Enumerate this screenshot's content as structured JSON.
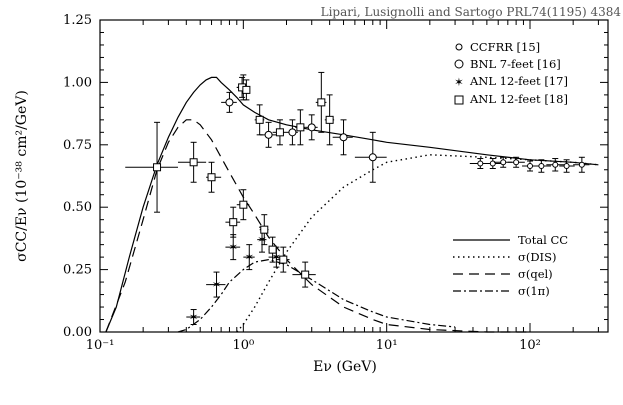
{
  "chart_data": {
    "type": "line",
    "citation": "Lipari, Lusignolli and Sartogo PRL74(1195) 4384",
    "xlabel": "Eν (GeV)",
    "ylabel": "σCC/Eν   (10⁻³⁸  cm²/GeV)",
    "xscale": "log",
    "xlim": [
      0.1,
      350
    ],
    "ylim": [
      0,
      1.25
    ],
    "x_ticks": [
      {
        "value": 0.1,
        "label": "10⁻¹"
      },
      {
        "value": 1,
        "label": "10⁰"
      },
      {
        "value": 10,
        "label": "10¹"
      },
      {
        "value": 100,
        "label": "10²"
      }
    ],
    "y_ticks": [
      {
        "value": 0,
        "label": "0.00"
      },
      {
        "value": 0.25,
        "label": "0.25"
      },
      {
        "value": 0.5,
        "label": "0.50"
      },
      {
        "value": 0.75,
        "label": "0.75"
      },
      {
        "value": 1.0,
        "label": "1.00"
      },
      {
        "value": 1.25,
        "label": "1.25"
      }
    ],
    "series": [
      {
        "name": "Total CC",
        "style": "solid",
        "x": [
          0.11,
          0.13,
          0.16,
          0.2,
          0.25,
          0.3,
          0.35,
          0.4,
          0.45,
          0.5,
          0.55,
          0.6,
          0.65,
          0.7,
          0.8,
          0.9,
          1.0,
          1.2,
          1.5,
          2,
          3,
          5,
          8,
          10,
          20,
          50,
          100,
          200,
          300
        ],
        "y": [
          0.0,
          0.1,
          0.3,
          0.5,
          0.67,
          0.78,
          0.86,
          0.92,
          0.96,
          0.99,
          1.01,
          1.02,
          1.02,
          1.0,
          0.97,
          0.94,
          0.91,
          0.88,
          0.85,
          0.83,
          0.81,
          0.79,
          0.77,
          0.76,
          0.74,
          0.71,
          0.69,
          0.68,
          0.67
        ]
      },
      {
        "name": "σ(DIS)",
        "style": "dotted",
        "x": [
          0.9,
          1.0,
          1.2,
          1.5,
          2,
          3,
          5,
          8,
          10,
          20,
          50,
          100,
          200,
          300
        ],
        "y": [
          0.0,
          0.03,
          0.1,
          0.2,
          0.32,
          0.46,
          0.58,
          0.65,
          0.68,
          0.71,
          0.7,
          0.69,
          0.68,
          0.67
        ]
      },
      {
        "name": "σ(qel)",
        "style": "dashed",
        "x": [
          0.11,
          0.15,
          0.2,
          0.25,
          0.3,
          0.35,
          0.4,
          0.45,
          0.5,
          0.6,
          0.7,
          0.8,
          1.0,
          1.2,
          1.5,
          2,
          3,
          5,
          8,
          10,
          20,
          50,
          100
        ],
        "y": [
          0.0,
          0.2,
          0.45,
          0.65,
          0.76,
          0.82,
          0.85,
          0.85,
          0.83,
          0.77,
          0.7,
          0.64,
          0.54,
          0.47,
          0.38,
          0.29,
          0.19,
          0.1,
          0.05,
          0.03,
          0.01,
          0.0,
          0.0
        ]
      },
      {
        "name": "σ(1π)",
        "style": "dashdot",
        "x": [
          0.35,
          0.4,
          0.5,
          0.6,
          0.7,
          0.8,
          1.0,
          1.2,
          1.5,
          2,
          3,
          5,
          8,
          10,
          20,
          30
        ],
        "y": [
          0.0,
          0.01,
          0.05,
          0.1,
          0.15,
          0.2,
          0.25,
          0.28,
          0.29,
          0.27,
          0.21,
          0.13,
          0.08,
          0.06,
          0.03,
          0.02
        ]
      }
    ],
    "data_sets": [
      {
        "name": "CCFRR [15]",
        "marker": "circle-small",
        "points": [
          {
            "x": 45,
            "y": 0.675,
            "xlo": 38,
            "xhi": 53,
            "ylo": 0.655,
            "yhi": 0.695
          },
          {
            "x": 55,
            "y": 0.675,
            "xlo": 47,
            "xhi": 63,
            "ylo": 0.655,
            "yhi": 0.695
          },
          {
            "x": 65,
            "y": 0.68,
            "xlo": 56,
            "xhi": 75,
            "ylo": 0.66,
            "yhi": 0.7
          },
          {
            "x": 80,
            "y": 0.68,
            "xlo": 70,
            "xhi": 92,
            "ylo": 0.66,
            "yhi": 0.7
          },
          {
            "x": 100,
            "y": 0.665,
            "xlo": 88,
            "xhi": 115,
            "ylo": 0.645,
            "yhi": 0.685
          },
          {
            "x": 120,
            "y": 0.665,
            "xlo": 105,
            "xhi": 140,
            "ylo": 0.64,
            "yhi": 0.69
          },
          {
            "x": 150,
            "y": 0.67,
            "xlo": 130,
            "xhi": 175,
            "ylo": 0.645,
            "yhi": 0.695
          },
          {
            "x": 180,
            "y": 0.665,
            "xlo": 160,
            "xhi": 205,
            "ylo": 0.64,
            "yhi": 0.69
          },
          {
            "x": 230,
            "y": 0.67,
            "xlo": 200,
            "xhi": 260,
            "ylo": 0.64,
            "yhi": 0.7
          }
        ]
      },
      {
        "name": "BNL 7-feet [16]",
        "marker": "circle",
        "points": [
          {
            "x": 0.8,
            "y": 0.92,
            "xlo": 0.7,
            "xhi": 0.9,
            "ylo": 0.88,
            "yhi": 0.96
          },
          {
            "x": 1.0,
            "y": 0.98,
            "xlo": 0.9,
            "xhi": 1.1,
            "ylo": 0.93,
            "yhi": 1.03
          },
          {
            "x": 1.5,
            "y": 0.79,
            "xlo": 1.3,
            "xhi": 1.7,
            "ylo": 0.74,
            "yhi": 0.84
          },
          {
            "x": 2.2,
            "y": 0.8,
            "xlo": 2.0,
            "xhi": 2.4,
            "ylo": 0.75,
            "yhi": 0.85
          },
          {
            "x": 3.0,
            "y": 0.82,
            "xlo": 2.7,
            "xhi": 3.3,
            "ylo": 0.77,
            "yhi": 0.87
          },
          {
            "x": 5.0,
            "y": 0.78,
            "xlo": 4.2,
            "xhi": 5.8,
            "ylo": 0.71,
            "yhi": 0.85
          },
          {
            "x": 8.0,
            "y": 0.7,
            "xlo": 6.0,
            "xhi": 10.0,
            "ylo": 0.6,
            "yhi": 0.8
          }
        ]
      },
      {
        "name": "ANL 12-feet [17]",
        "marker": "star",
        "points": [
          {
            "x": 0.45,
            "y": 0.06,
            "xlo": 0.4,
            "xhi": 0.5,
            "ylo": 0.03,
            "yhi": 0.09
          },
          {
            "x": 0.65,
            "y": 0.19,
            "xlo": 0.55,
            "xhi": 0.75,
            "ylo": 0.14,
            "yhi": 0.24
          },
          {
            "x": 0.85,
            "y": 0.34,
            "xlo": 0.75,
            "xhi": 0.95,
            "ylo": 0.29,
            "yhi": 0.39
          },
          {
            "x": 1.1,
            "y": 0.3,
            "xlo": 1.0,
            "xhi": 1.2,
            "ylo": 0.25,
            "yhi": 0.35
          },
          {
            "x": 1.35,
            "y": 0.37,
            "xlo": 1.25,
            "xhi": 1.45,
            "ylo": 0.32,
            "yhi": 0.42
          },
          {
            "x": 1.7,
            "y": 0.3,
            "xlo": 1.5,
            "xhi": 1.9,
            "ylo": 0.26,
            "yhi": 0.34
          }
        ]
      },
      {
        "name": "ANL 12-feet [18]",
        "marker": "square",
        "points": [
          {
            "x": 0.25,
            "y": 0.66,
            "xlo": 0.15,
            "xhi": 0.35,
            "ylo": 0.48,
            "yhi": 0.84
          },
          {
            "x": 0.45,
            "y": 0.68,
            "xlo": 0.35,
            "xhi": 0.55,
            "ylo": 0.6,
            "yhi": 0.76
          },
          {
            "x": 0.6,
            "y": 0.62,
            "xlo": 0.55,
            "xhi": 0.7,
            "ylo": 0.56,
            "yhi": 0.68
          },
          {
            "x": 0.85,
            "y": 0.44,
            "xlo": 0.75,
            "xhi": 0.95,
            "ylo": 0.38,
            "yhi": 0.5
          },
          {
            "x": 1.0,
            "y": 0.51,
            "xlo": 0.9,
            "xhi": 1.1,
            "ylo": 0.45,
            "yhi": 0.57
          },
          {
            "x": 1.4,
            "y": 0.41,
            "xlo": 1.3,
            "xhi": 1.5,
            "ylo": 0.35,
            "yhi": 0.47
          },
          {
            "x": 1.6,
            "y": 0.33,
            "xlo": 1.5,
            "xhi": 1.7,
            "ylo": 0.28,
            "yhi": 0.38
          },
          {
            "x": 1.9,
            "y": 0.29,
            "xlo": 1.7,
            "xhi": 2.1,
            "ylo": 0.24,
            "yhi": 0.34
          },
          {
            "x": 2.7,
            "y": 0.23,
            "xlo": 2.2,
            "xhi": 3.2,
            "ylo": 0.18,
            "yhi": 0.28
          },
          {
            "x": 0.98,
            "y": 0.98,
            "xlo": 0.9,
            "xhi": 1.05,
            "ylo": 0.94,
            "yhi": 1.02
          },
          {
            "x": 1.05,
            "y": 0.97,
            "xlo": 1.0,
            "xhi": 1.1,
            "ylo": 0.93,
            "yhi": 1.01
          },
          {
            "x": 1.3,
            "y": 0.85,
            "xlo": 1.2,
            "xhi": 1.4,
            "ylo": 0.79,
            "yhi": 0.91
          },
          {
            "x": 1.8,
            "y": 0.8,
            "xlo": 1.6,
            "xhi": 2.0,
            "ylo": 0.75,
            "yhi": 0.85
          },
          {
            "x": 2.5,
            "y": 0.82,
            "xlo": 2.3,
            "xhi": 2.7,
            "ylo": 0.75,
            "yhi": 0.89
          },
          {
            "x": 3.5,
            "y": 0.92,
            "xlo": 3.2,
            "xhi": 3.8,
            "ylo": 0.8,
            "yhi": 1.04
          },
          {
            "x": 4.0,
            "y": 0.85,
            "xlo": 3.7,
            "xhi": 4.3,
            "ylo": 0.75,
            "yhi": 0.95
          }
        ]
      }
    ],
    "legend_top": [
      "CCFRR [15]",
      "BNL 7-feet [16]",
      "ANL 12-feet [17]",
      "ANL 12-feet [18]"
    ],
    "legend_bottom": [
      "Total CC",
      "σ(DIS)",
      "σ(qel)",
      "σ(1π)"
    ],
    "legend_placement": "top-right and bottom-right",
    "grid": false
  }
}
